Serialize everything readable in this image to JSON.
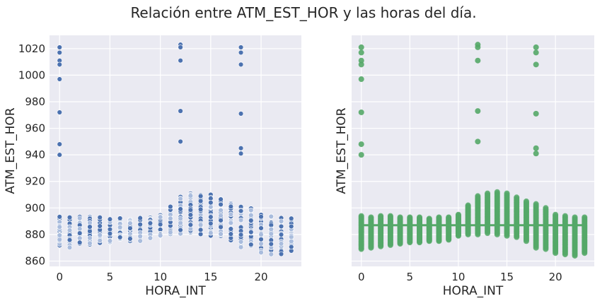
{
  "figure": {
    "title": "Relación entre ATM_EST_HOR y las horas del día."
  },
  "colors": {
    "panel_bg": "#EAEAF2",
    "grid": "#FFFFFF",
    "blue": "#4C72B0",
    "light_blue": "#A9BCDD",
    "green": "#55A868"
  },
  "chart_data": [
    {
      "type": "scatter",
      "xlabel": "HORA_INT",
      "ylabel": "ATM_EST_HOR",
      "xlim": [
        -1,
        24
      ],
      "ylim": [
        856,
        1030
      ],
      "xticks": [
        0,
        5,
        10,
        15,
        20
      ],
      "yticks": [
        860,
        880,
        900,
        920,
        940,
        960,
        980,
        1000,
        1020
      ],
      "grid": true,
      "series": [
        {
          "hour_ranges": [
            {
              "x": 0,
              "min": 869,
              "max": 894
            },
            {
              "x": 1,
              "min": 870,
              "max": 893
            },
            {
              "x": 2,
              "min": 871,
              "max": 894
            },
            {
              "x": 3,
              "min": 872,
              "max": 894
            },
            {
              "x": 4,
              "min": 873,
              "max": 893
            },
            {
              "x": 5,
              "min": 874,
              "max": 893
            },
            {
              "x": 6,
              "min": 874,
              "max": 893
            },
            {
              "x": 7,
              "min": 875,
              "max": 892
            },
            {
              "x": 8,
              "min": 875,
              "max": 893
            },
            {
              "x": 9,
              "min": 876,
              "max": 893
            },
            {
              "x": 10,
              "min": 879,
              "max": 895
            },
            {
              "x": 11,
              "min": 880,
              "max": 902
            },
            {
              "x": 12,
              "min": 880,
              "max": 909
            },
            {
              "x": 13,
              "min": 881,
              "max": 911
            },
            {
              "x": 14,
              "min": 880,
              "max": 912
            },
            {
              "x": 15,
              "min": 879,
              "max": 911
            },
            {
              "x": 16,
              "min": 878,
              "max": 908
            },
            {
              "x": 17,
              "min": 875,
              "max": 905
            },
            {
              "x": 18,
              "min": 870,
              "max": 903
            },
            {
              "x": 19,
              "min": 869,
              "max": 900
            },
            {
              "x": 20,
              "min": 866,
              "max": 895
            },
            {
              "x": 21,
              "min": 865,
              "max": 894
            },
            {
              "x": 22,
              "min": 864,
              "max": 893
            },
            {
              "x": 23,
              "min": 866,
              "max": 893
            }
          ],
          "outliers": [
            {
              "x": 0,
              "y": 1021
            },
            {
              "x": 0,
              "y": 1017
            },
            {
              "x": 0,
              "y": 1011
            },
            {
              "x": 0,
              "y": 1008
            },
            {
              "x": 0,
              "y": 997
            },
            {
              "x": 0,
              "y": 972
            },
            {
              "x": 0,
              "y": 948
            },
            {
              "x": 0,
              "y": 940
            },
            {
              "x": 12,
              "y": 1023
            },
            {
              "x": 12,
              "y": 1021
            },
            {
              "x": 12,
              "y": 1011
            },
            {
              "x": 12,
              "y": 973
            },
            {
              "x": 12,
              "y": 950
            },
            {
              "x": 18,
              "y": 1021
            },
            {
              "x": 18,
              "y": 1017
            },
            {
              "x": 18,
              "y": 1008
            },
            {
              "x": 18,
              "y": 971
            },
            {
              "x": 18,
              "y": 945
            },
            {
              "x": 18,
              "y": 941
            }
          ]
        }
      ]
    },
    {
      "type": "scatter",
      "xlabel": "HORA_INT",
      "ylabel": "ATM_EST_HOR",
      "xlim": [
        -1,
        24
      ],
      "ylim": [
        856,
        1030
      ],
      "xticks": [
        0,
        5,
        10,
        15,
        20
      ],
      "grid": true,
      "regression_line": {
        "x": [
          0,
          23
        ],
        "y": [
          887,
          887
        ]
      }
    }
  ]
}
